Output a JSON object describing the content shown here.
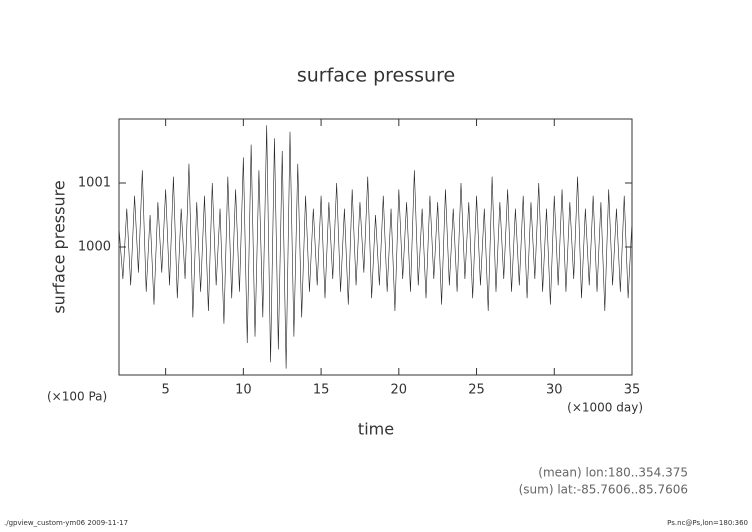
{
  "chart_data": {
    "type": "line",
    "title": "surface pressure",
    "y_label": "surface pressure",
    "x_label": "time",
    "y_units": "(×100 Pa)",
    "x_units": "(×1000 day)",
    "annotations": [
      "(mean) lon:180..354.375",
      "(sum) lat:-85.7606..85.7606"
    ],
    "footer_left": "./gpview_custom-ym06  2009-11-17",
    "footer_right": "Ps.nc@Ps,lon=180:360",
    "color": "#222222",
    "xlim": [
      2,
      35
    ],
    "xticks": [
      5,
      10,
      15,
      20,
      25,
      30,
      35
    ],
    "ylim": [
      998,
      1002
    ],
    "yticks": [
      1000,
      1001
    ],
    "x": [
      2,
      2.25,
      2.5,
      2.75,
      3,
      3.25,
      3.5,
      3.75,
      4,
      4.25,
      4.5,
      4.75,
      5,
      5.25,
      5.5,
      5.75,
      6,
      6.25,
      6.5,
      6.75,
      7,
      7.25,
      7.5,
      7.75,
      8,
      8.25,
      8.5,
      8.75,
      9,
      9.25,
      9.5,
      9.75,
      10,
      10.25,
      10.5,
      10.75,
      11,
      11.25,
      11.5,
      11.75,
      12,
      12.25,
      12.5,
      12.75,
      13,
      13.25,
      13.5,
      13.75,
      14,
      14.25,
      14.5,
      14.75,
      15,
      15.25,
      15.5,
      15.75,
      16,
      16.25,
      16.5,
      16.75,
      17,
      17.25,
      17.5,
      17.75,
      18,
      18.25,
      18.5,
      18.75,
      19,
      19.25,
      19.5,
      19.75,
      20,
      20.25,
      20.5,
      20.75,
      21,
      21.25,
      21.5,
      21.75,
      22,
      22.25,
      22.5,
      22.75,
      23,
      23.25,
      23.5,
      23.75,
      24,
      24.25,
      24.5,
      24.75,
      25,
      25.25,
      25.5,
      25.75,
      26,
      26.25,
      26.5,
      26.75,
      27,
      27.25,
      27.5,
      27.75,
      28,
      28.25,
      28.5,
      28.75,
      29,
      29.25,
      29.5,
      29.75,
      30,
      30.25,
      30.5,
      30.75,
      31,
      31.25,
      31.5,
      31.75,
      32,
      32.25,
      32.5,
      32.75,
      33,
      33.25,
      33.5,
      33.75,
      34,
      34.25,
      34.5,
      34.75,
      35
    ],
    "values": [
      1000.3,
      999.5,
      1000.6,
      999.4,
      1000.8,
      999.6,
      1001.2,
      999.3,
      1000.5,
      999.1,
      1000.7,
      999.6,
      1000.9,
      999.4,
      1001.1,
      999.2,
      1000.6,
      999.5,
      1001.3,
      998.9,
      1000.7,
      999.3,
      1000.8,
      999.0,
      1001.0,
      999.4,
      1000.6,
      998.8,
      1001.1,
      999.2,
      1000.9,
      999.3,
      1001.4,
      998.5,
      1001.6,
      998.6,
      1001.2,
      998.9,
      1001.9,
      998.2,
      1001.7,
      998.4,
      1001.5,
      998.1,
      1001.8,
      998.6,
      1001.3,
      998.9,
      1000.8,
      999.3,
      1000.6,
      999.4,
      1000.8,
      999.2,
      1000.7,
      999.5,
      1001.0,
      999.3,
      1000.6,
      999.1,
      1000.9,
      999.4,
      1000.7,
      999.6,
      1001.1,
      999.2,
      1000.5,
      999.4,
      1000.8,
      999.3,
      1000.6,
      999.0,
      1000.9,
      999.5,
      1000.7,
      999.3,
      1001.2,
      999.4,
      1000.6,
      999.2,
      1000.8,
      999.5,
      1000.7,
      999.1,
      1000.9,
      999.4,
      1000.6,
      999.3,
      1001.0,
      999.5,
      1000.7,
      999.2,
      1000.8,
      999.4,
      1000.6,
      999.0,
      1001.1,
      999.3,
      1000.7,
      999.5,
      1000.9,
      999.3,
      1000.6,
      999.4,
      1000.8,
      999.2,
      1000.7,
      999.5,
      1001.0,
      999.3,
      1000.6,
      999.1,
      1000.8,
      999.4,
      1000.9,
      999.3,
      1000.7,
      999.5,
      1001.1,
      999.2,
      1000.6,
      999.4,
      1000.8,
      999.3,
      1000.7,
      999.0,
      1000.9,
      999.4,
      1000.6,
      999.3,
      1000.8,
      999.2,
      1000.4
    ]
  }
}
